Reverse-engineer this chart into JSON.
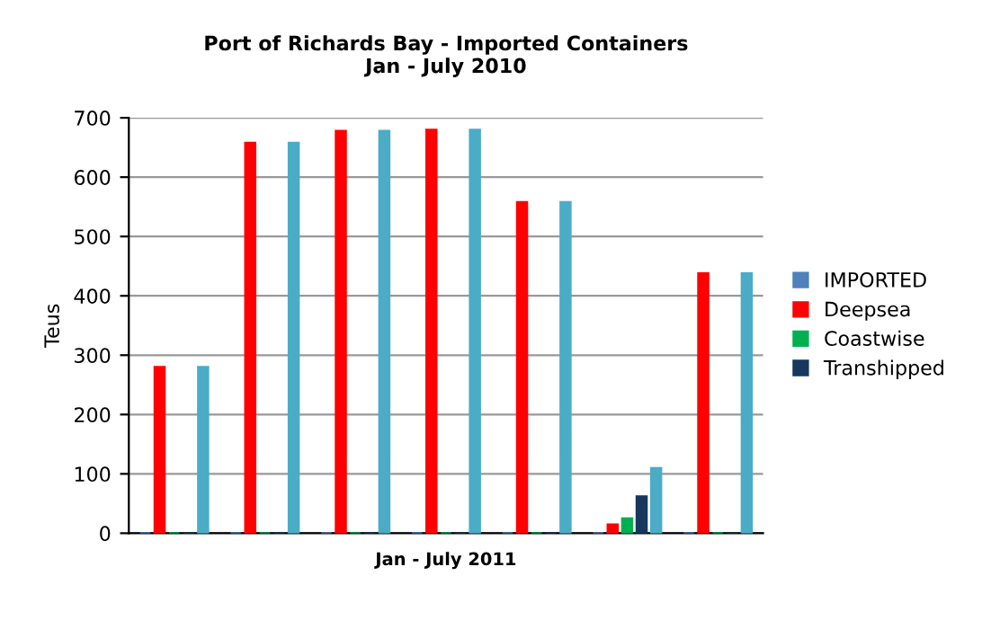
{
  "chart_data": {
    "type": "bar",
    "title": "Port of Richards Bay - Imported Containers\nJan - July 2010",
    "xlabel": "Jan - July 2011",
    "ylabel": "Teus",
    "categories": [
      null,
      null,
      null,
      null,
      null,
      null,
      null
    ],
    "series": [
      {
        "name": "IMPORTED",
        "color": "#4f81bd",
        "values": [
          0,
          0,
          0,
          0,
          0,
          0,
          0
        ]
      },
      {
        "name": "Deepsea",
        "color": "#ff0000",
        "values": [
          280,
          658,
          678,
          680,
          558,
          15,
          438
        ]
      },
      {
        "name": "Coastwise",
        "color": "#00b050",
        "values": [
          0,
          0,
          0,
          0,
          0,
          25,
          0
        ]
      },
      {
        "name": "Transhipped",
        "color": "#17375e",
        "values": [
          0,
          0,
          0,
          0,
          0,
          62,
          0
        ]
      },
      {
        "color": "#4bacc6",
        "values": [
          280,
          658,
          678,
          680,
          558,
          110,
          438
        ]
      }
    ],
    "ylim": [
      0,
      700
    ],
    "yticks": [
      0,
      100,
      200,
      300,
      400,
      500,
      600,
      700
    ],
    "grid": "y",
    "legend": "right"
  }
}
